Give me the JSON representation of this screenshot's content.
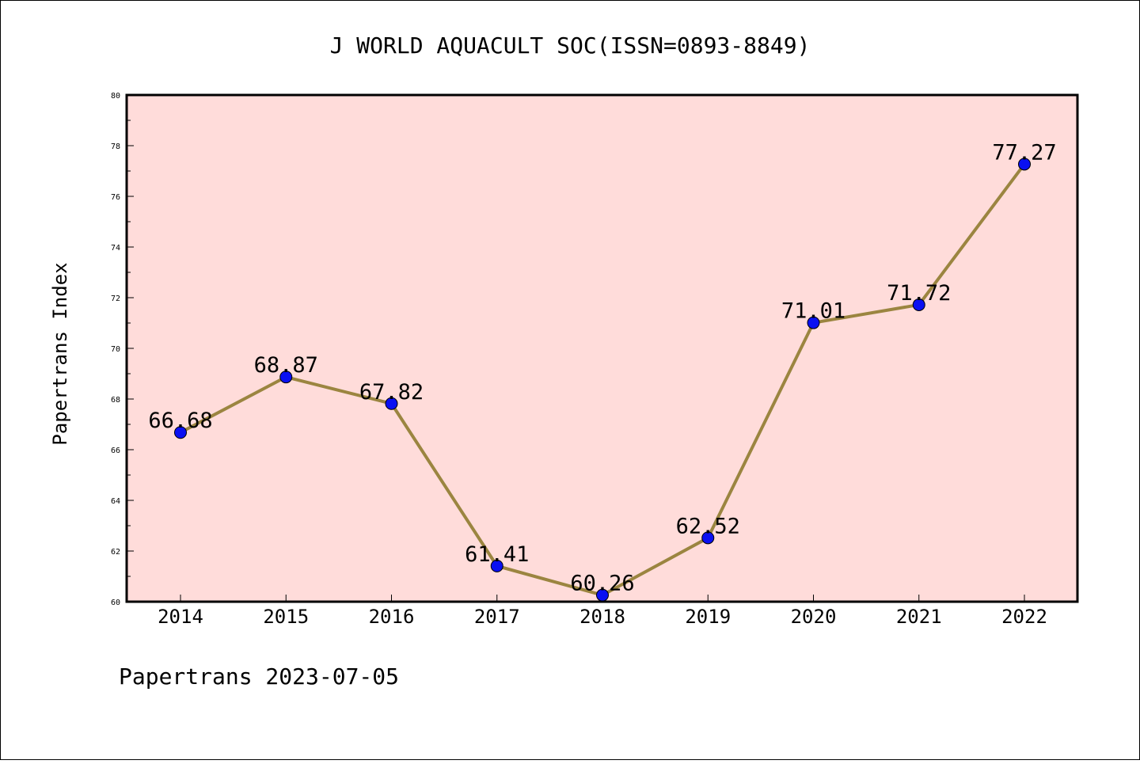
{
  "chart_data": {
    "type": "line",
    "title": "J WORLD AQUACULT SOC(ISSN=0893-8849)",
    "ylabel": "Papertrans Index",
    "xlabel": "",
    "categories": [
      "2014",
      "2015",
      "2016",
      "2017",
      "2018",
      "2019",
      "2020",
      "2021",
      "2022"
    ],
    "values": [
      66.68,
      68.87,
      67.82,
      61.41,
      60.26,
      62.52,
      71.01,
      71.72,
      77.27
    ],
    "data_labels": [
      "66.68",
      "68.87",
      "67.82",
      "61.41",
      "60.26",
      "62.52",
      "71.01",
      "71.72",
      "77.27"
    ],
    "ylim": [
      60,
      80
    ],
    "yticks": [
      "60",
      "62",
      "64",
      "66",
      "68",
      "70",
      "72",
      "74",
      "76",
      "78",
      "80"
    ],
    "grid": false,
    "legend": "none",
    "colors": {
      "plot_background": "#ffdcda",
      "line": "#9b8540",
      "marker": "#0a10f2"
    }
  },
  "footer": {
    "text": "Papertrans 2023-07-05"
  }
}
